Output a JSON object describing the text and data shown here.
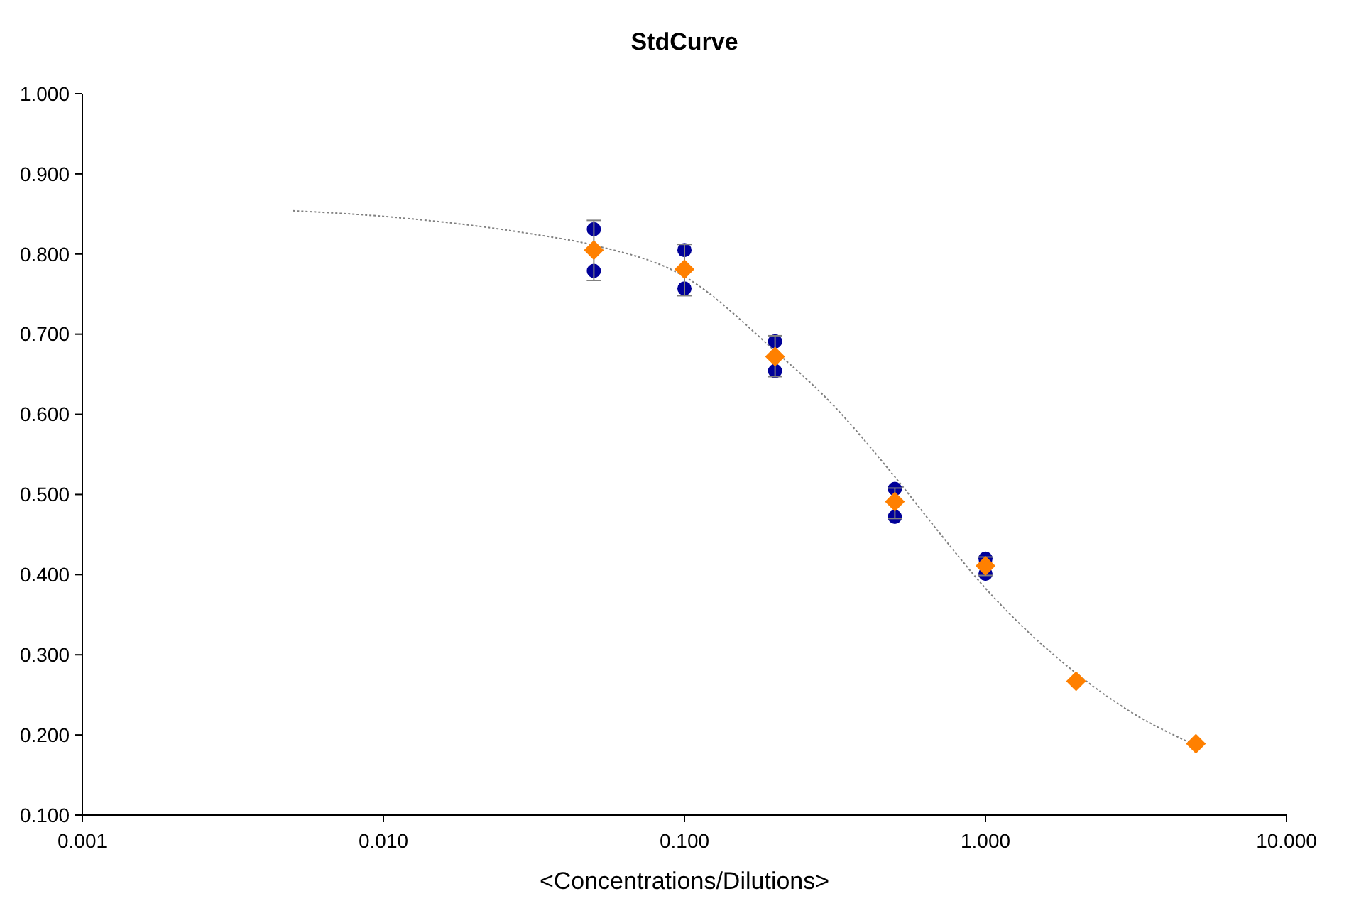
{
  "chart_data": {
    "type": "scatter",
    "title": "StdCurve",
    "xlabel": "<Concentrations/Dilutions>",
    "log": "x",
    "grid": false,
    "xlim": [
      0.001,
      10
    ],
    "xticks": [
      {
        "value": 0.001,
        "label": "0.001"
      },
      {
        "value": 0.01,
        "label": "0.010"
      },
      {
        "value": 0.1,
        "label": "0.100"
      },
      {
        "value": 1,
        "label": "1.000"
      },
      {
        "value": 10,
        "label": "10.000"
      }
    ],
    "ylim": [
      0.1,
      1.0
    ],
    "yticks": [
      {
        "value": 0.1,
        "label": "0.100"
      },
      {
        "value": 0.2,
        "label": "0.200"
      },
      {
        "value": 0.3,
        "label": "0.300"
      },
      {
        "value": 0.4,
        "label": "0.400"
      },
      {
        "value": 0.5,
        "label": "0.500"
      },
      {
        "value": 0.6,
        "label": "0.600"
      },
      {
        "value": 0.7,
        "label": "0.700"
      },
      {
        "value": 0.8,
        "label": "0.800"
      },
      {
        "value": 0.9,
        "label": "0.900"
      },
      {
        "value": 1.0,
        "label": "1.000"
      }
    ],
    "series": [
      {
        "type": "line",
        "color": "#808080",
        "marker": "none",
        "line_style": "dotted",
        "x": [
          0.005,
          0.01,
          0.03,
          0.05,
          0.1,
          0.2,
          0.3,
          0.5,
          0.7,
          1,
          2,
          3,
          5
        ],
        "values": [
          0.854,
          0.847,
          0.826,
          0.811,
          0.772,
          0.679,
          0.618,
          0.522,
          0.453,
          0.383,
          0.277,
          0.23,
          0.187
        ]
      },
      {
        "color": "#000099",
        "marker": "circle",
        "x": [
          0.05,
          0.05,
          0.1,
          0.1,
          0.2,
          0.2,
          0.5,
          0.5,
          1,
          1
        ],
        "values": [
          0.831,
          0.779,
          0.805,
          0.757,
          0.691,
          0.654,
          0.507,
          0.472,
          0.42,
          0.401
        ]
      },
      {
        "color": "#ff8000",
        "marker": "diamond",
        "x": [
          0.05,
          0.1,
          0.2,
          0.5,
          1,
          2,
          5
        ],
        "values": [
          0.805,
          0.781,
          0.672,
          0.491,
          0.411,
          0.267,
          0.189
        ],
        "errors": [
          [
            0.767,
            0.842
          ],
          [
            0.748,
            0.812
          ],
          [
            0.647,
            0.698
          ],
          [
            0.47,
            0.508
          ],
          [
            0.399,
            0.422
          ],
          null,
          null
        ]
      }
    ]
  }
}
